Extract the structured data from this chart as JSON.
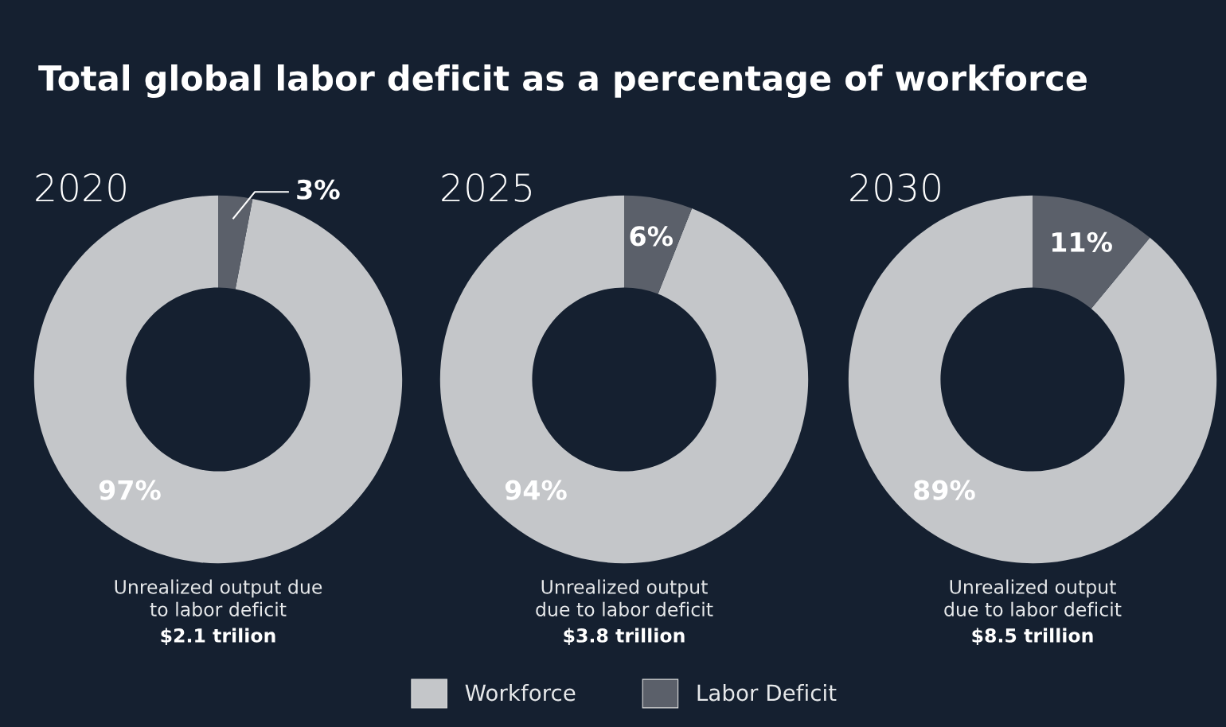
{
  "chart_data": [
    {
      "type": "donut",
      "title": "Total global labor deficit as a percentage of workforce",
      "subtitle": "2020",
      "categories": [
        null,
        null
      ],
      "values": [
        97,
        3
      ],
      "value_labels": [
        "97%",
        "3%"
      ],
      "colors": [
        "#c4c6c9",
        "#5b606a"
      ],
      "annotations": [
        "Unrealized output due\nto labor deficit",
        "$2.1 trilion"
      ],
      "legend": false
    },
    {
      "type": "donut",
      "subtitle": "2025",
      "categories": [
        "Workforce",
        "Labor Deficit"
      ],
      "values": [
        94,
        6
      ],
      "value_labels": [
        "94%",
        "6%"
      ],
      "colors": [
        "#c4c6c9",
        "#5b606a"
      ],
      "annotations": [
        "Unrealized output\ndue to labor deficit",
        "$3.8 trillion"
      ],
      "legend": "bottom"
    },
    {
      "type": "donut",
      "subtitle": "2030",
      "categories": [
        null,
        null
      ],
      "values": [
        89,
        11
      ],
      "value_labels": [
        "89%",
        "11%"
      ],
      "colors": [
        "#c4c6c9",
        "#5b606a"
      ],
      "annotations": [
        "Unrealized output\ndue to labor deficit",
        "$8.5 trillion"
      ],
      "legend": false
    }
  ]
}
